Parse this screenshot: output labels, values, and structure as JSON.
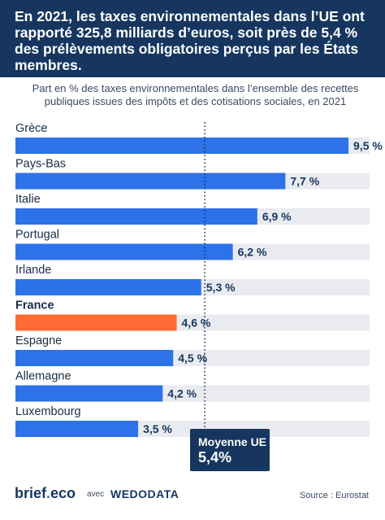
{
  "header": {
    "headline": "En 2021, les taxes environnementales dans l’UE ont rapporté 325,8 milliards d’euros, soit près de 5,4 % des prélèvements obligatoires perçus par les États membres."
  },
  "subtitle": "Part en % des taxes environnementales dans l’ensemble des recettes publiques issues des impôts et des cotisations sociales, en 2021",
  "colors": {
    "bar": "#2d72e8",
    "highlight": "#ff6b35",
    "track": "#e9ebf0",
    "navy": "#16365f"
  },
  "chart_data": {
    "type": "bar",
    "orientation": "horizontal",
    "categories": [
      "Grèce",
      "Pays-Bas",
      "Italie",
      "Portugal",
      "Irlande",
      "France",
      "Espagne",
      "Allemagne",
      "Luxembourg"
    ],
    "values": [
      9.5,
      7.7,
      6.9,
      6.2,
      5.3,
      4.6,
      4.5,
      4.2,
      3.5
    ],
    "value_labels": [
      "9,5 %",
      "7,7 %",
      "6,9 %",
      "6,2 %",
      "5,3 %",
      "4,6 %",
      "4,5 %",
      "4,2 %",
      "3,5 %"
    ],
    "highlight": "France",
    "xlim": [
      0,
      10
    ],
    "reference_line": {
      "value": 5.4,
      "style": "dotted"
    },
    "grid": false,
    "legend": "none"
  },
  "mean_box": {
    "label": "Moyenne UE",
    "value": "5,4%"
  },
  "footer": {
    "brand": "brief",
    "brand_dot": ".",
    "brand_suffix": "eco",
    "partner_prefix": "avec",
    "partner": "WEDODATA",
    "source": "Source : Eurostat"
  }
}
